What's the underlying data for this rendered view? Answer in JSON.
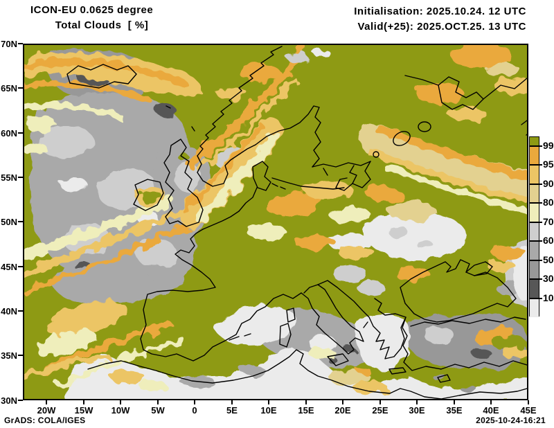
{
  "header": {
    "title_line1": "ICON-EU 0.0625 degree",
    "title_line2": "Total Clouds  [ %]",
    "init_line": "Initialisation: 2025.10.24. 12 UTC",
    "valid_line": "Valid(+25): 2025.OCT.25. 13 UTC"
  },
  "axes": {
    "lat": [
      "70N",
      "65N",
      "60N",
      "55N",
      "50N",
      "45N",
      "40N",
      "35N",
      "30N"
    ],
    "lon": [
      "20W",
      "15W",
      "10W",
      "5W",
      "0",
      "5E",
      "10E",
      "15E",
      "20E",
      "25E",
      "30E",
      "35E",
      "40E",
      "45E"
    ]
  },
  "colorbar": {
    "tick_labels": [
      "99.5",
      "95",
      "90",
      "80",
      "70",
      "60",
      "50",
      "30",
      "10"
    ],
    "segment_keys": [
      "olive",
      "orange",
      "lightOrange",
      "tan",
      "paleYellow",
      "grayLight",
      "grayMid",
      "gray",
      "grayDark",
      "white"
    ]
  },
  "palette": {
    "olive": "#8e9a14",
    "orange": "#eaa93c",
    "lightOrange": "#ecc565",
    "tan": "#e3d190",
    "paleYellow": "#efeebb",
    "grayLight": "#cecece",
    "grayMid": "#a9a9a9",
    "gray": "#989898",
    "grayDark": "#575757",
    "white": "#ebebeb",
    "coast": "#000000"
  },
  "footer": {
    "credit": "GrADS: COLA/IGES",
    "timestamp": "2025-10-24-16:21"
  }
}
